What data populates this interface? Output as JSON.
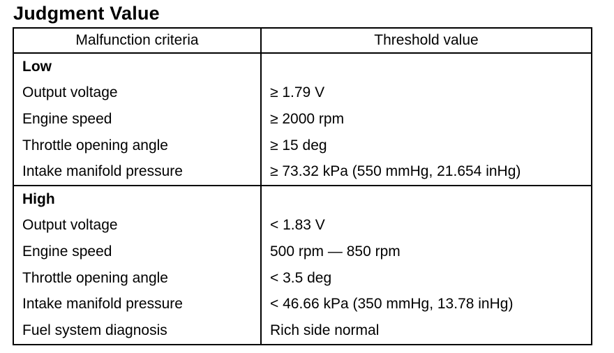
{
  "title": "Judgment Value",
  "table": {
    "headers": {
      "criteria": "Malfunction criteria",
      "threshold": "Threshold value"
    },
    "groups": [
      {
        "label": "Low",
        "rows": [
          {
            "criteria": "Output voltage",
            "threshold": "≥ 1.79 V"
          },
          {
            "criteria": "Engine speed",
            "threshold": "≥ 2000 rpm"
          },
          {
            "criteria": "Throttle opening angle",
            "threshold": "≥ 15 deg"
          },
          {
            "criteria": "Intake manifold pressure",
            "threshold": "≥ 73.32 kPa (550 mmHg, 21.654 inHg)"
          }
        ]
      },
      {
        "label": "High",
        "rows": [
          {
            "criteria": "Output voltage",
            "threshold": "< 1.83 V"
          },
          {
            "criteria": "Engine speed",
            "threshold": "500 rpm — 850 rpm"
          },
          {
            "criteria": "Throttle opening angle",
            "threshold": "< 3.5 deg"
          },
          {
            "criteria": "Intake manifold pressure",
            "threshold": "< 46.66 kPa (350 mmHg, 13.78 inHg)"
          },
          {
            "criteria": "Fuel system diagnosis",
            "threshold": "Rich side normal"
          }
        ]
      }
    ]
  }
}
